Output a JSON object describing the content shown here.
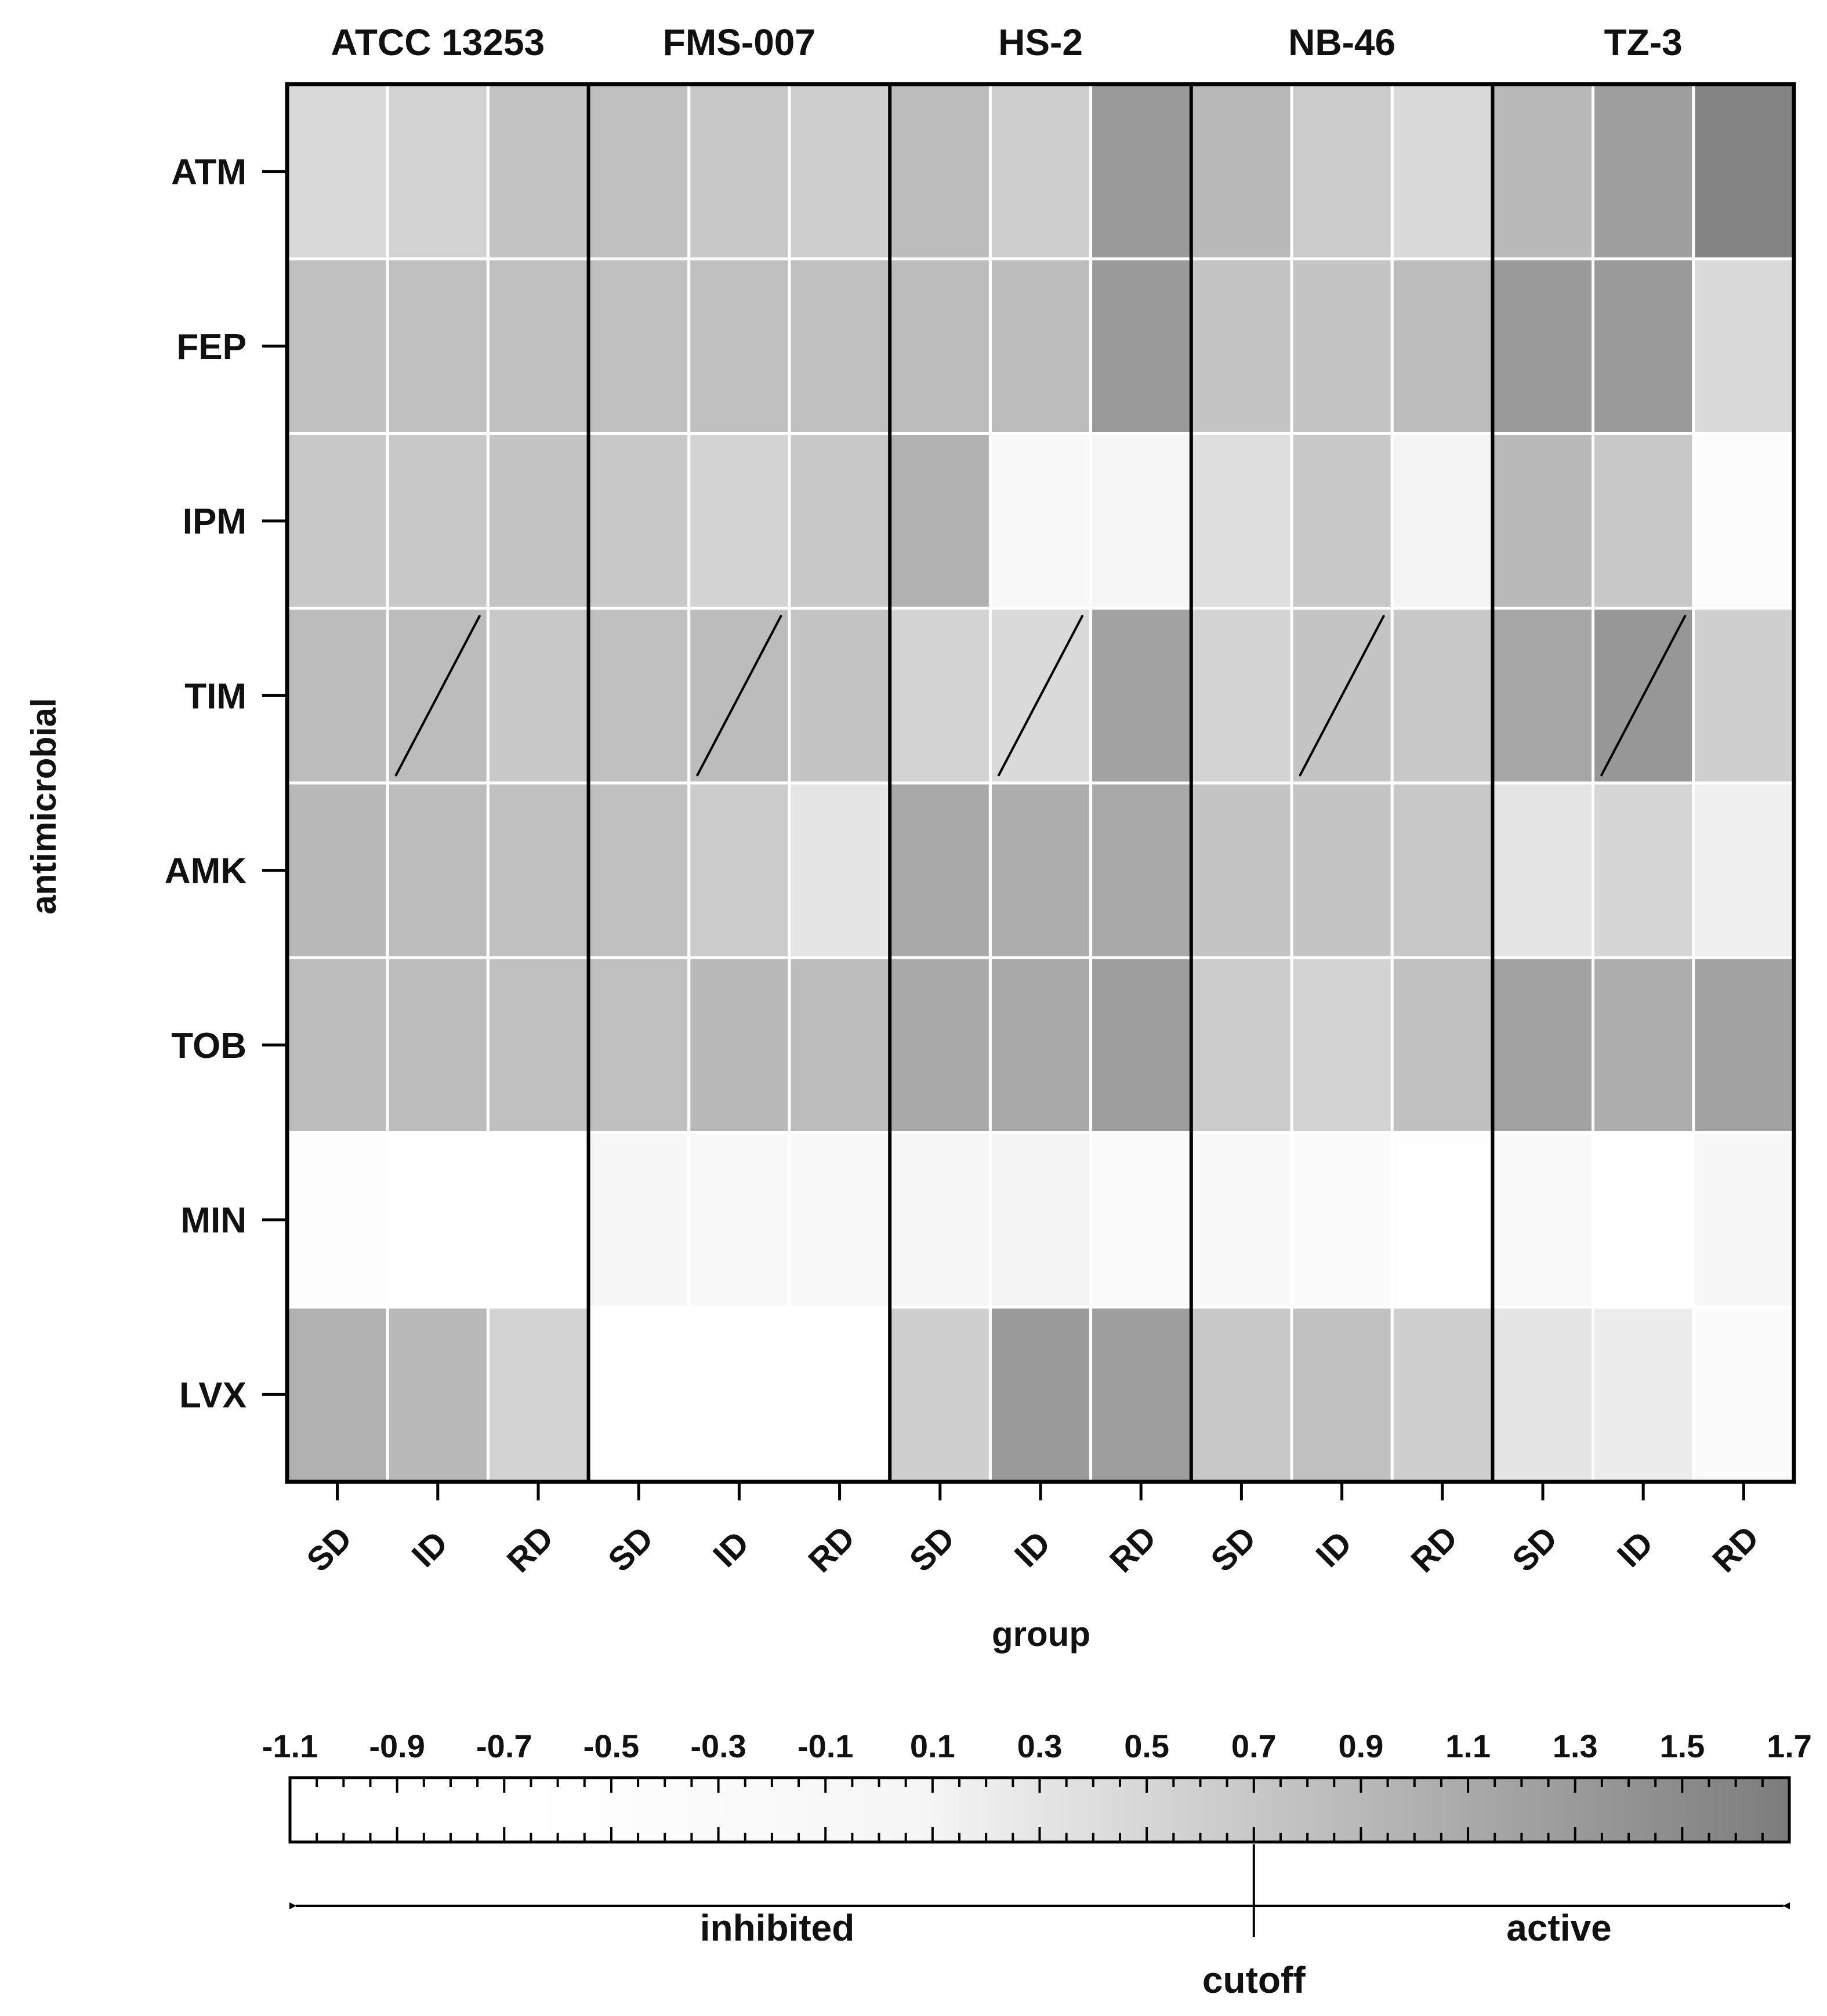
{
  "chart_data": {
    "type": "heatmap",
    "xlabel": "group",
    "ylabel": "antimicrobial",
    "strains": [
      "ATCC 13253",
      "FMS-007",
      "HS-2",
      "NB-46",
      "TZ-3"
    ],
    "groups": [
      "SD",
      "ID",
      "RD"
    ],
    "antimicrobials": [
      "ATM",
      "FEP",
      "IPM",
      "TIM",
      "AMK",
      "TOB",
      "MIN",
      "LVX"
    ],
    "values": [
      [
        0.45,
        0.55,
        0.75,
        0.8,
        0.7,
        0.6,
        0.85,
        0.6,
        1.3,
        0.9,
        0.65,
        0.45,
        0.9,
        1.25,
        1.6
      ],
      [
        0.8,
        0.8,
        0.8,
        0.8,
        0.8,
        0.8,
        0.85,
        0.85,
        1.3,
        0.75,
        0.75,
        0.85,
        1.3,
        1.3,
        0.45
      ],
      [
        0.7,
        0.7,
        0.75,
        0.7,
        0.55,
        0.7,
        1.0,
        -0.05,
        0.05,
        0.4,
        0.7,
        0.1,
        0.9,
        0.7,
        -0.4
      ],
      [
        0.85,
        0.85,
        0.7,
        0.8,
        0.85,
        0.75,
        0.55,
        0.45,
        1.2,
        0.55,
        0.75,
        0.7,
        1.15,
        1.35,
        0.6
      ],
      [
        0.9,
        0.85,
        0.8,
        0.8,
        0.65,
        0.3,
        1.1,
        1.05,
        1.1,
        0.75,
        0.75,
        0.7,
        0.3,
        0.5,
        0.15
      ],
      [
        0.85,
        0.85,
        0.8,
        0.8,
        0.9,
        0.85,
        1.1,
        1.1,
        1.25,
        0.65,
        0.55,
        0.8,
        1.2,
        1.05,
        1.2
      ],
      [
        -0.5,
        -0.9,
        -0.85,
        0.0,
        -0.05,
        -0.1,
        0.05,
        0.1,
        -0.35,
        -0.05,
        -0.3,
        -0.6,
        -0.2,
        -1.0,
        0.0
      ],
      [
        1.0,
        0.9,
        0.55,
        -1.0,
        -1.0,
        -1.0,
        0.6,
        1.3,
        1.25,
        0.7,
        0.8,
        0.6,
        0.3,
        0.2,
        -0.3
      ]
    ],
    "crossed_row": "TIM",
    "crossed_group": "ID",
    "colorbar": {
      "ticks": [
        "-1.1",
        "-0.9",
        "-0.7",
        "-0.5",
        "-0.3",
        "-0.1",
        "0.1",
        "0.3",
        "0.5",
        "0.7",
        "0.9",
        "1.1",
        "1.3",
        "1.5",
        "1.7"
      ],
      "min": -1.1,
      "max": 1.7,
      "cutoff": 0.7,
      "inhibited_label": "inhibited",
      "active_label": "active",
      "cutoff_label": "cutoff",
      "color_low": "#ffffff",
      "color_high": "#7c7c7c"
    }
  }
}
